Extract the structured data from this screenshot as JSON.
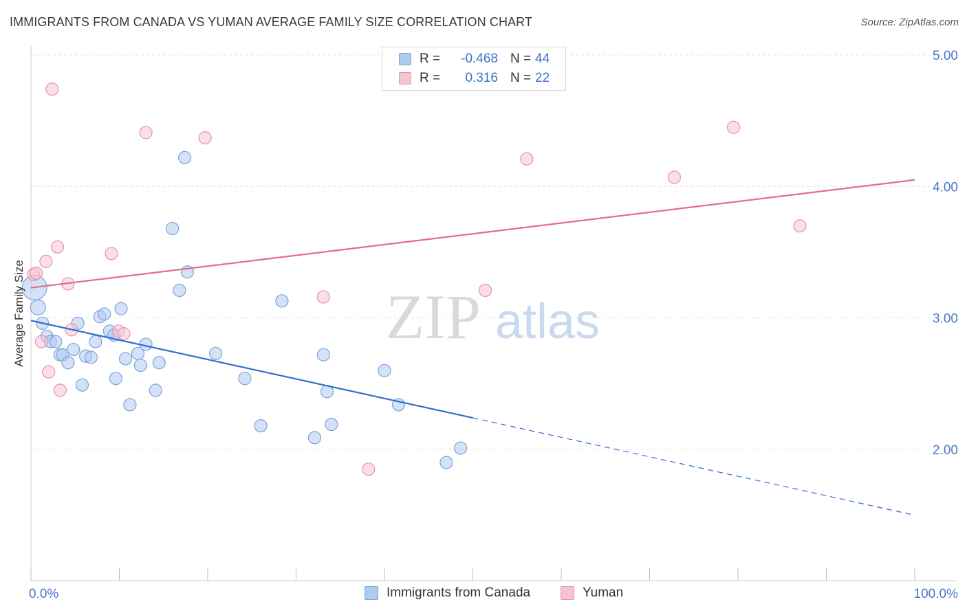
{
  "title": "IMMIGRANTS FROM CANADA VS YUMAN AVERAGE FAMILY SIZE CORRELATION CHART",
  "source": "Source: ZipAtlas.com",
  "colors": {
    "blue_fill": "#aecbf0",
    "blue_stroke": "#7aa3d9",
    "blue_line": "#2f6fd0",
    "pink_fill": "#f7c3d3",
    "pink_stroke": "#e891ad",
    "pink_line": "#e46a93",
    "tick_text": "#4a78c8",
    "grid": "#e3e3e3"
  },
  "legend": {
    "r_label": "R =",
    "n_label": "N =",
    "rows": [
      {
        "r": "-0.468",
        "n": "44"
      },
      {
        "r": "0.316",
        "n": "22"
      }
    ]
  },
  "watermark": {
    "zip": "ZIP",
    "atlas": "atlas"
  },
  "chart_data": {
    "type": "scatter",
    "title": "IMMIGRANTS FROM CANADA VS YUMAN AVERAGE FAMILY SIZE CORRELATION CHART",
    "xlabel": "",
    "ylabel": "Average Family Size",
    "xlim": [
      0,
      100
    ],
    "ylim": [
      1.1,
      5.2
    ],
    "x_tick_labels": [
      "0.0%",
      "100.0%"
    ],
    "y_ticks": [
      2.0,
      3.0,
      4.0,
      5.0
    ],
    "y_tick_labels": [
      "2.00",
      "3.00",
      "4.00",
      "5.00"
    ],
    "grid": true,
    "legend_position": "top-center",
    "series": [
      {
        "name": "Immigrants from Canada",
        "color": "#aecbf0",
        "points": [
          [
            0.4,
            3.23
          ],
          [
            0.8,
            3.08
          ],
          [
            1.3,
            2.96
          ],
          [
            1.8,
            2.86
          ],
          [
            2.2,
            2.82
          ],
          [
            2.8,
            2.82
          ],
          [
            3.3,
            2.72
          ],
          [
            3.6,
            2.72
          ],
          [
            4.2,
            2.66
          ],
          [
            4.8,
            2.76
          ],
          [
            5.3,
            2.96
          ],
          [
            5.8,
            2.49
          ],
          [
            6.2,
            2.71
          ],
          [
            6.8,
            2.7
          ],
          [
            7.3,
            2.82
          ],
          [
            7.8,
            3.01
          ],
          [
            8.3,
            3.03
          ],
          [
            8.9,
            2.9
          ],
          [
            9.4,
            2.87
          ],
          [
            9.6,
            2.54
          ],
          [
            10.2,
            3.07
          ],
          [
            10.7,
            2.69
          ],
          [
            11.2,
            2.34
          ],
          [
            12.1,
            2.73
          ],
          [
            12.4,
            2.64
          ],
          [
            13.0,
            2.8
          ],
          [
            14.1,
            2.45
          ],
          [
            14.5,
            2.66
          ],
          [
            16.0,
            3.68
          ],
          [
            16.8,
            3.21
          ],
          [
            17.4,
            4.22
          ],
          [
            17.7,
            3.35
          ],
          [
            20.9,
            2.73
          ],
          [
            24.2,
            2.54
          ],
          [
            26.0,
            2.18
          ],
          [
            28.4,
            3.13
          ],
          [
            32.1,
            2.09
          ],
          [
            33.1,
            2.72
          ],
          [
            33.5,
            2.44
          ],
          [
            34.0,
            2.19
          ],
          [
            40.0,
            2.6
          ],
          [
            41.6,
            2.34
          ],
          [
            47.0,
            1.9
          ],
          [
            48.6,
            2.01
          ]
        ]
      },
      {
        "name": "Yuman",
        "color": "#f7c3d3",
        "points": [
          [
            0.3,
            3.33
          ],
          [
            0.6,
            3.34
          ],
          [
            1.2,
            2.82
          ],
          [
            1.7,
            3.43
          ],
          [
            2.0,
            2.59
          ],
          [
            2.4,
            4.74
          ],
          [
            3.0,
            3.54
          ],
          [
            3.3,
            2.45
          ],
          [
            4.2,
            3.26
          ],
          [
            4.6,
            2.91
          ],
          [
            9.1,
            3.49
          ],
          [
            9.9,
            2.9
          ],
          [
            10.5,
            2.88
          ],
          [
            13.0,
            4.41
          ],
          [
            19.7,
            4.37
          ],
          [
            33.1,
            3.16
          ],
          [
            38.2,
            1.85
          ],
          [
            51.4,
            3.21
          ],
          [
            56.1,
            4.21
          ],
          [
            72.8,
            4.07
          ],
          [
            79.5,
            4.45
          ],
          [
            87.0,
            3.7
          ]
        ]
      }
    ],
    "trend_lines": [
      {
        "series": "Immigrants from Canada",
        "x0": 0,
        "y0": 2.98,
        "x1": 50,
        "y1": 2.24,
        "dashed_to_x": 100,
        "dashed_to_y": 1.5
      },
      {
        "series": "Yuman",
        "x0": 0,
        "y0": 3.23,
        "x1": 100,
        "y1": 4.05
      }
    ]
  }
}
